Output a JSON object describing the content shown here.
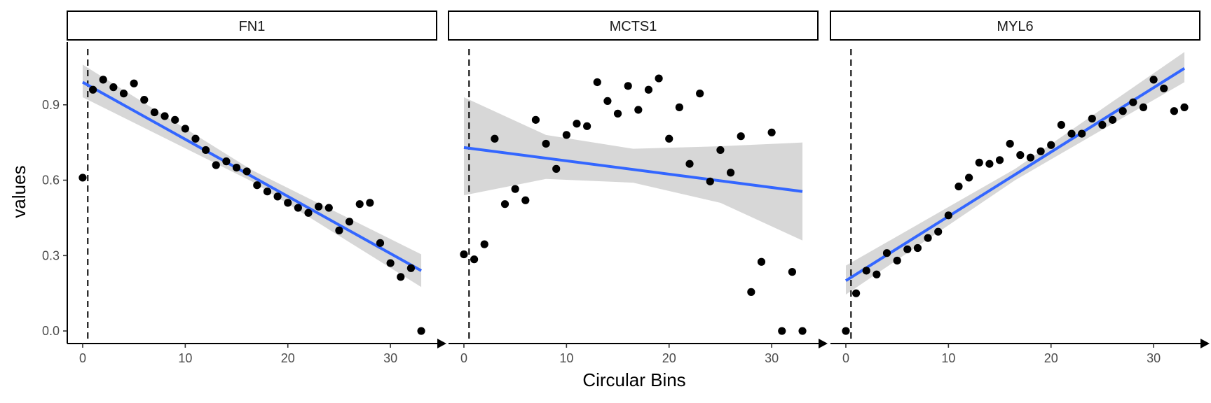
{
  "chart_data": {
    "type": "scatter",
    "xlabel": "Circular Bins",
    "ylabel": "values",
    "xlim": [
      -1.5,
      34.5
    ],
    "ylim": [
      -0.05,
      1.15
    ],
    "x_ticks": [
      0,
      10,
      20,
      30
    ],
    "y_ticks": [
      0.0,
      0.3,
      0.6,
      0.9
    ],
    "y_tick_labels": [
      "0.0",
      "0.3",
      "0.6",
      "0.9"
    ],
    "vline_x": 0.5,
    "grid": false,
    "colors": {
      "points": "#000000",
      "fit_line": "#3366ff",
      "ci_band": "#bdbdbd",
      "vline": "#000000"
    },
    "panels": [
      {
        "name": "FN1",
        "x": [
          0,
          1,
          2,
          3,
          4,
          5,
          6,
          7,
          8,
          9,
          10,
          11,
          12,
          13,
          14,
          15,
          16,
          17,
          18,
          19,
          20,
          21,
          22,
          23,
          24,
          25,
          26,
          27,
          28,
          29,
          30,
          31,
          32,
          33
        ],
        "y": [
          0.61,
          0.96,
          1.0,
          0.97,
          0.945,
          0.985,
          0.92,
          0.87,
          0.855,
          0.84,
          0.805,
          0.765,
          0.72,
          0.66,
          0.675,
          0.65,
          0.635,
          0.58,
          0.555,
          0.535,
          0.51,
          0.49,
          0.47,
          0.495,
          0.49,
          0.4,
          0.435,
          0.505,
          0.51,
          0.35,
          0.27,
          0.215,
          0.25,
          0.0
        ],
        "fit": {
          "x0": 0,
          "y0": 0.99,
          "x1": 33,
          "y1": 0.24
        },
        "ci": {
          "x": [
            0,
            16.5,
            33
          ],
          "lower": [
            0.93,
            0.595,
            0.175
          ],
          "upper": [
            1.06,
            0.64,
            0.305
          ]
        }
      },
      {
        "name": "MCTS1",
        "x": [
          0,
          1,
          2,
          3,
          4,
          5,
          6,
          7,
          8,
          9,
          10,
          11,
          12,
          13,
          14,
          15,
          16,
          17,
          18,
          19,
          20,
          21,
          22,
          23,
          24,
          25,
          26,
          27,
          28,
          29,
          30,
          31,
          32,
          33
        ],
        "y": [
          0.305,
          0.285,
          0.345,
          0.765,
          0.505,
          0.565,
          0.52,
          0.84,
          0.745,
          0.645,
          0.78,
          0.825,
          0.815,
          0.99,
          0.915,
          0.865,
          0.975,
          0.88,
          0.96,
          1.005,
          0.765,
          0.89,
          0.665,
          0.945,
          0.595,
          0.72,
          0.63,
          0.775,
          0.155,
          0.275,
          0.79,
          0.0,
          0.235,
          0.0
        ],
        "fit": {
          "x0": 0,
          "y0": 0.73,
          "x1": 33,
          "y1": 0.555
        },
        "ci": {
          "x": [
            0,
            8,
            16.5,
            25,
            33
          ],
          "lower": [
            0.54,
            0.605,
            0.59,
            0.51,
            0.36
          ],
          "upper": [
            0.93,
            0.78,
            0.725,
            0.735,
            0.75
          ]
        }
      },
      {
        "name": "MYL6",
        "x": [
          0,
          1,
          2,
          3,
          4,
          5,
          6,
          7,
          8,
          9,
          10,
          11,
          12,
          13,
          14,
          15,
          16,
          17,
          18,
          19,
          20,
          21,
          22,
          23,
          24,
          25,
          26,
          27,
          28,
          29,
          30,
          31,
          32,
          33
        ],
        "y": [
          0.0,
          0.15,
          0.24,
          0.225,
          0.31,
          0.28,
          0.325,
          0.33,
          0.37,
          0.395,
          0.46,
          0.575,
          0.61,
          0.67,
          0.665,
          0.68,
          0.745,
          0.7,
          0.69,
          0.715,
          0.74,
          0.82,
          0.785,
          0.785,
          0.845,
          0.82,
          0.84,
          0.875,
          0.91,
          0.89,
          1.0,
          0.965,
          0.875,
          0.89
        ],
        "fit": {
          "x0": 0,
          "y0": 0.2,
          "x1": 33,
          "y1": 1.045
        },
        "ci": {
          "x": [
            0,
            16.5,
            33
          ],
          "lower": [
            0.145,
            0.6,
            0.99
          ],
          "upper": [
            0.26,
            0.645,
            1.11
          ]
        }
      }
    ]
  }
}
